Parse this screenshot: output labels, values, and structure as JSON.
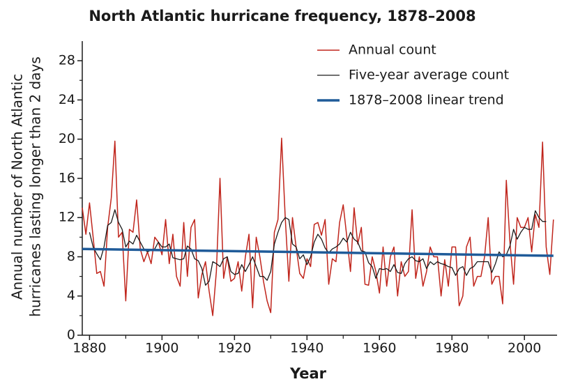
{
  "chart_data": {
    "type": "line",
    "title": "North Atlantic hurricane frequency, 1878–2008",
    "xlabel": "Year",
    "ylabel": [
      "Annual number of North Atlantic",
      "hurricanes lasting longer than 2 days"
    ],
    "x": [
      1878,
      1879,
      1880,
      1881,
      1882,
      1883,
      1884,
      1885,
      1886,
      1887,
      1888,
      1889,
      1890,
      1891,
      1892,
      1893,
      1894,
      1895,
      1896,
      1897,
      1898,
      1899,
      1900,
      1901,
      1902,
      1903,
      1904,
      1905,
      1906,
      1907,
      1908,
      1909,
      1910,
      1911,
      1912,
      1913,
      1914,
      1915,
      1916,
      1917,
      1918,
      1919,
      1920,
      1921,
      1922,
      1923,
      1924,
      1925,
      1926,
      1927,
      1928,
      1929,
      1930,
      1931,
      1932,
      1933,
      1934,
      1935,
      1936,
      1937,
      1938,
      1939,
      1940,
      1941,
      1942,
      1943,
      1944,
      1945,
      1946,
      1947,
      1948,
      1949,
      1950,
      1951,
      1952,
      1953,
      1954,
      1955,
      1956,
      1957,
      1958,
      1959,
      1960,
      1961,
      1962,
      1963,
      1964,
      1965,
      1966,
      1967,
      1968,
      1969,
      1970,
      1971,
      1972,
      1973,
      1974,
      1975,
      1976,
      1977,
      1978,
      1979,
      1980,
      1981,
      1982,
      1983,
      1984,
      1985,
      1986,
      1987,
      1988,
      1989,
      1990,
      1991,
      1992,
      1993,
      1994,
      1995,
      1996,
      1997,
      1998,
      1999,
      2000,
      2001,
      2002,
      2003,
      2004,
      2005,
      2006,
      2007,
      2008
    ],
    "series": [
      {
        "name": "Annual count",
        "color": "#c0251c",
        "width": 1.5,
        "values": [
          13,
          10.3,
          13.5,
          10,
          6.3,
          6.5,
          5,
          11,
          14,
          19.8,
          10,
          10.5,
          3.5,
          10.8,
          10.5,
          13.8,
          8.8,
          7.5,
          8.5,
          7.3,
          10,
          9.5,
          8.2,
          11.8,
          7.3,
          10.3,
          6,
          5,
          11.5,
          6,
          11,
          11.8,
          3.8,
          6.2,
          7.5,
          4.5,
          2,
          6.5,
          16,
          5.8,
          8,
          5.5,
          5.8,
          7.5,
          4.5,
          8,
          10.3,
          2.8,
          10,
          8,
          5.5,
          3.5,
          2.3,
          10.5,
          11.8,
          20.1,
          12,
          5.5,
          12,
          9,
          6.3,
          5.8,
          7.8,
          7,
          11.3,
          11.5,
          10.2,
          11.8,
          5.2,
          7.8,
          7.5,
          11.5,
          13.3,
          10,
          6.5,
          13,
          9.3,
          11,
          5.2,
          5.1,
          8,
          6.5,
          4.3,
          9,
          5,
          8,
          9,
          4,
          7.5,
          6,
          6.5,
          12.8,
          5.8,
          8,
          5,
          6.5,
          9,
          8,
          8,
          4,
          7.7,
          5,
          9,
          9,
          3,
          4,
          9,
          10,
          5,
          6,
          6,
          8,
          12,
          5.2,
          6,
          6,
          3.2,
          15.8,
          9.5,
          5.2,
          12,
          11,
          11,
          12,
          8.5,
          12.3,
          11,
          19.7,
          9,
          6.2,
          11.8
        ]
      },
      {
        "name": "Five-year average count",
        "color": "#1a1a1a",
        "width": 1.3,
        "values": [
          null,
          null,
          10.5,
          9,
          8.3,
          7.7,
          9,
          11.2,
          11.5,
          12.8,
          11.5,
          10.8,
          9,
          9.6,
          9.3,
          10.2,
          9.5,
          8.8,
          8.5,
          8.7,
          8.8,
          9.5,
          9,
          9,
          9.3,
          7.9,
          7.8,
          7.7,
          7.8,
          9.1,
          8.8,
          7.8,
          7.6,
          6.8,
          5.1,
          5.5,
          7.5,
          7.3,
          7,
          7.8,
          8,
          6.5,
          6.2,
          6.3,
          7.2,
          6.5,
          7.2,
          8,
          7,
          6,
          6,
          5.6,
          6.5,
          9.3,
          10.5,
          11.5,
          12,
          11.8,
          9.3,
          9,
          7.8,
          8.2,
          7.2,
          8,
          9.5,
          10.3,
          9.8,
          8.9,
          8.4,
          8.8,
          9,
          9.3,
          9.9,
          9.5,
          10.5,
          9.8,
          9.5,
          8.6,
          8.5,
          7.4,
          7,
          5.8,
          6.8,
          6.7,
          6.8,
          6.5,
          7.2,
          6.4,
          6.3,
          7.3,
          7.8,
          8,
          7.6,
          7.5,
          7.8,
          6.8,
          7.5,
          7.2,
          7.5,
          7.3,
          7.2,
          7,
          6.9,
          6.1,
          6.8,
          7,
          6.1,
          6.8,
          7,
          7.5,
          7.5,
          7.5,
          7.5,
          6.4,
          7.3,
          8.5,
          8,
          8.2,
          9.1,
          10.8,
          9.8,
          10.5,
          11,
          10.8,
          10.8,
          12.7,
          12,
          11.6,
          11.6,
          null,
          null
        ]
      },
      {
        "name": "1878–2008 linear trend",
        "color": "#1f5b99",
        "width": 3.5,
        "x": [
          1878,
          2008
        ],
        "values": [
          8.8,
          8.1
        ]
      }
    ],
    "xlim": [
      1878,
      2009
    ],
    "xticks": [
      1880,
      1900,
      1920,
      1940,
      1960,
      1980,
      2000
    ],
    "xminorticks": [
      1890,
      1910,
      1930,
      1950,
      1970,
      1990
    ],
    "ylim": [
      0,
      30
    ],
    "yticks": [
      0,
      4,
      8,
      12,
      16,
      20,
      24,
      28
    ],
    "yminorticks": [
      2,
      6,
      10,
      14,
      18,
      22,
      26
    ],
    "legend": "top-right"
  }
}
